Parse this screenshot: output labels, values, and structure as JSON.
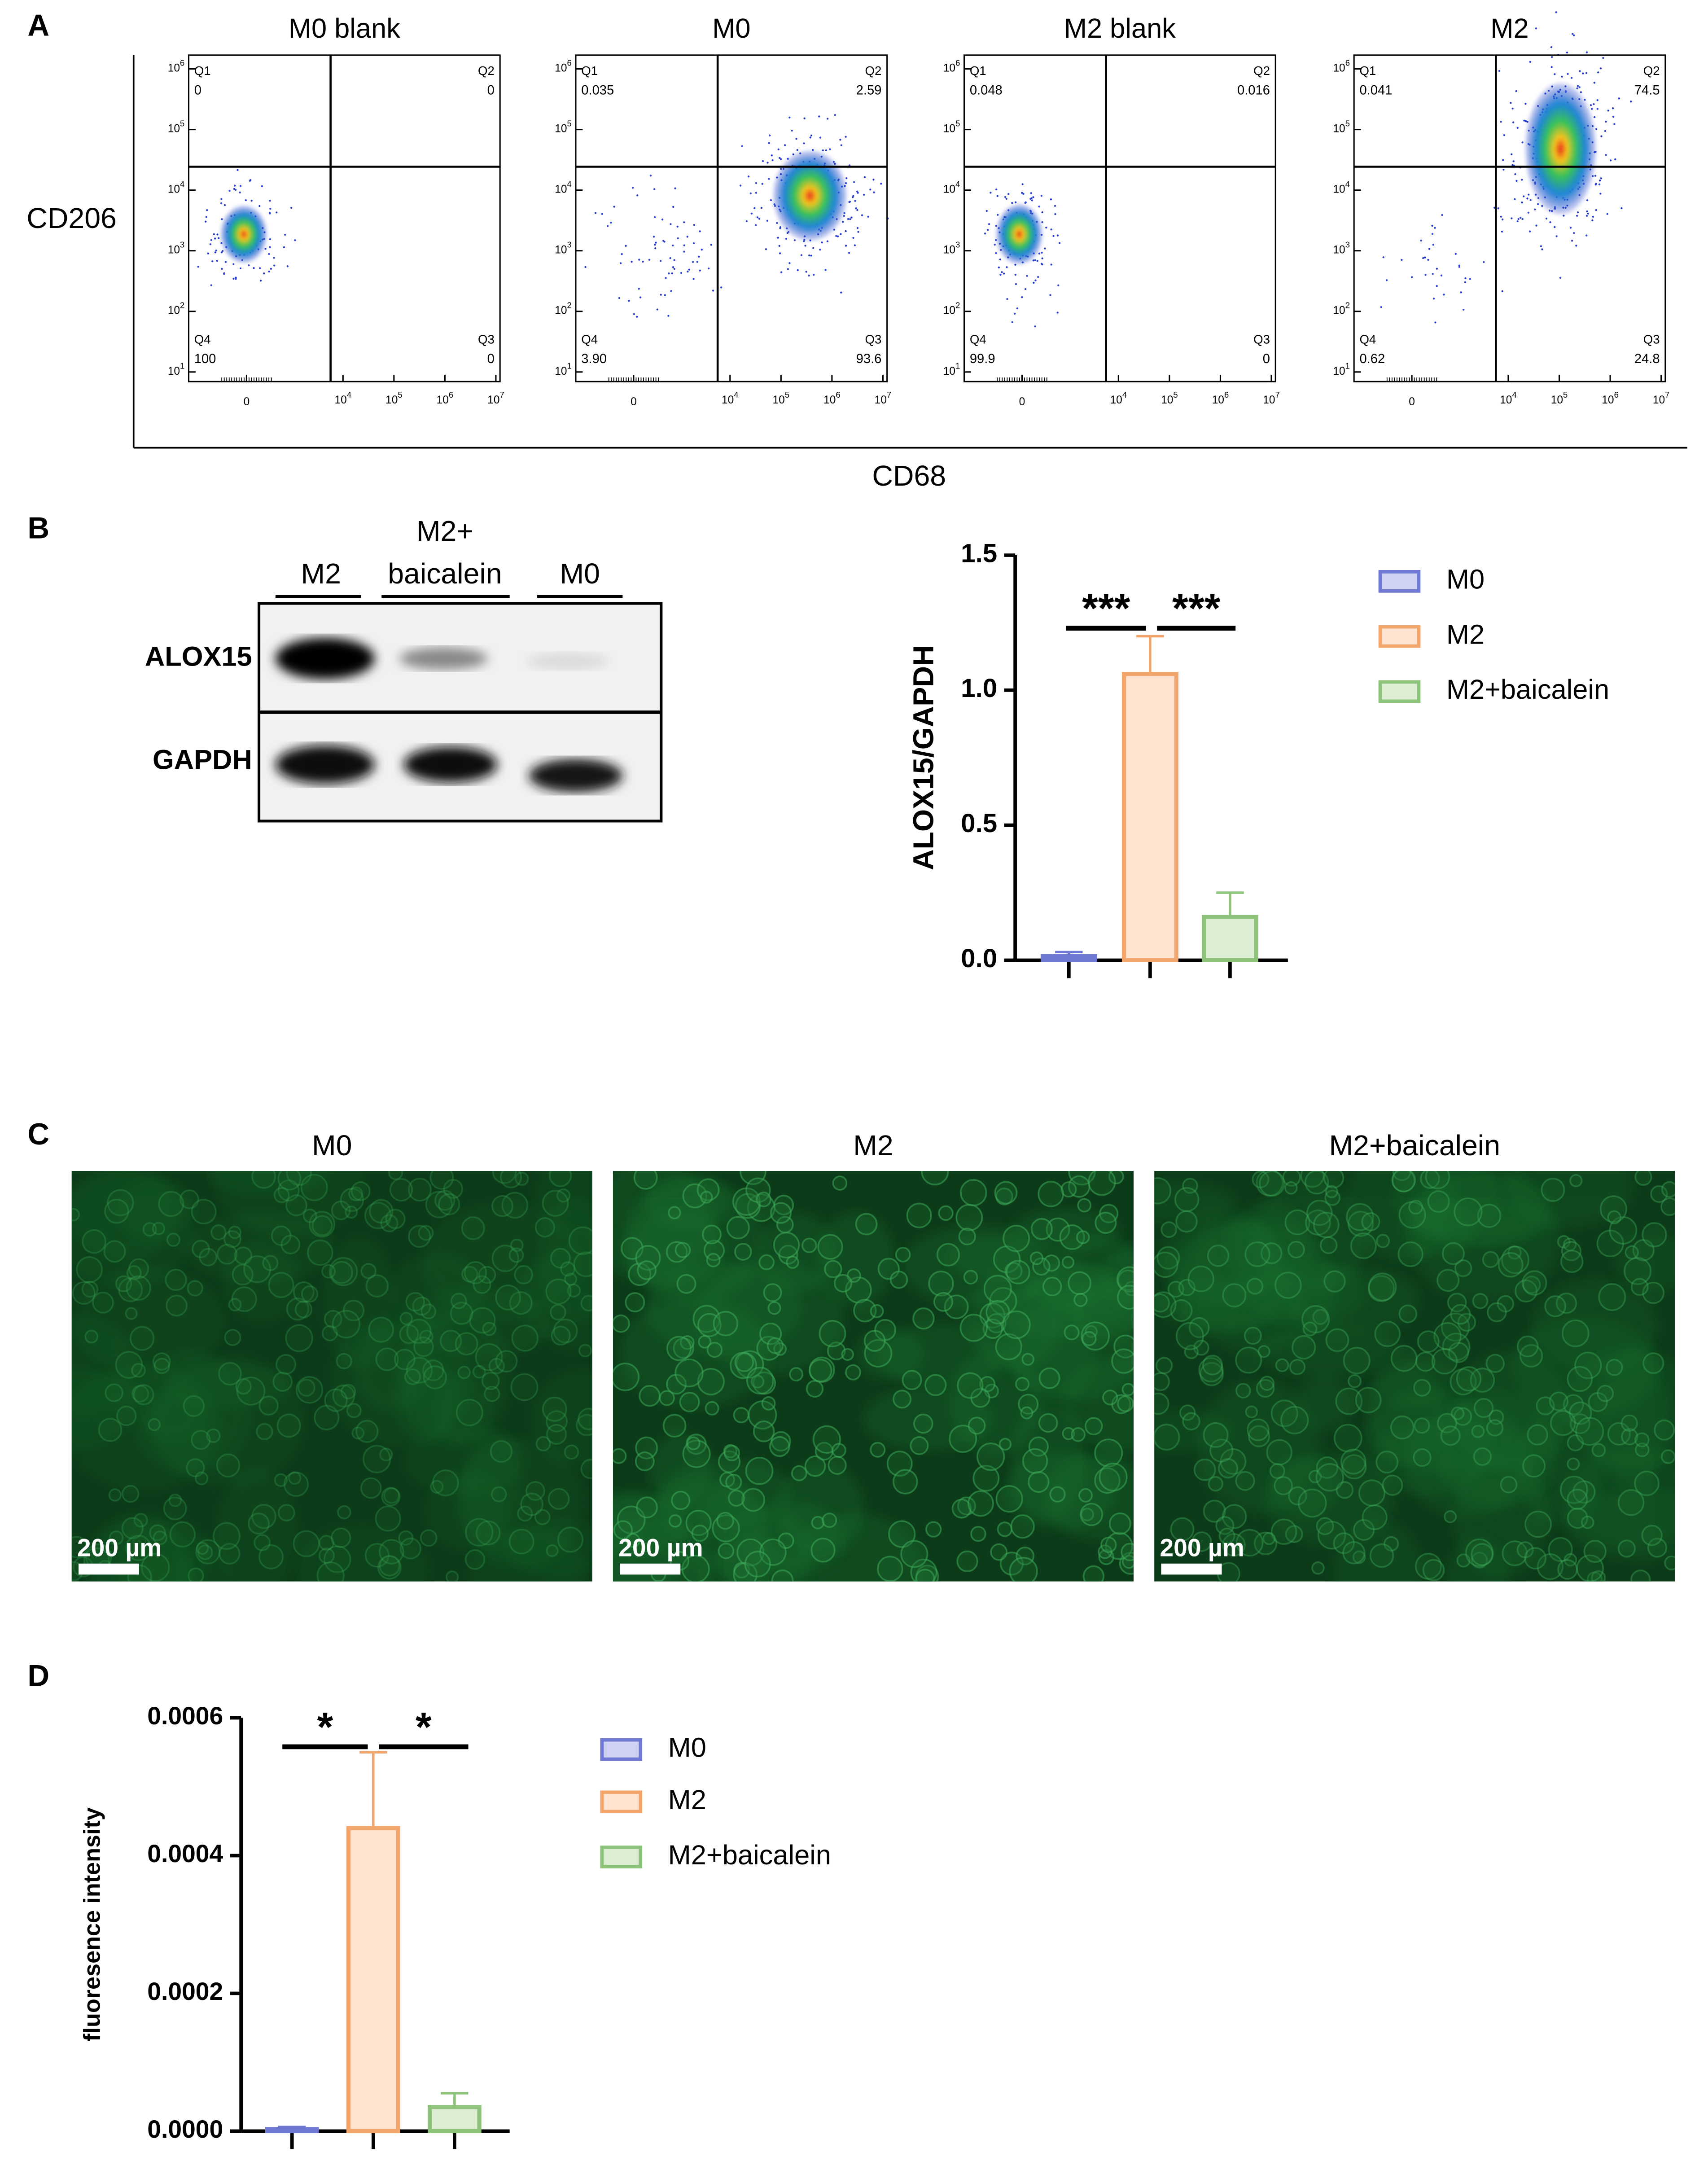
{
  "panel_labels": [
    "A",
    "B",
    "C",
    "D"
  ],
  "flow_cytometry": {
    "y_label": "CD206",
    "x_label": "CD68",
    "tick_base": "10",
    "x_tick_zero": 0,
    "x_tick_exponents": [
      4,
      5,
      6,
      7
    ],
    "y_tick_exponents": [
      1,
      2,
      3,
      4,
      5,
      6
    ],
    "plots": [
      {
        "title": "M0 blank",
        "quadrants": [
          {
            "name": "Q1",
            "value": "0"
          },
          {
            "name": "Q2",
            "value": "0"
          },
          {
            "name": "Q3",
            "value": "0"
          },
          {
            "name": "Q4",
            "value": "100"
          }
        ]
      },
      {
        "title": "M0",
        "quadrants": [
          {
            "name": "Q1",
            "value": "0.035"
          },
          {
            "name": "Q2",
            "value": "2.59"
          },
          {
            "name": "Q3",
            "value": "93.6"
          },
          {
            "name": "Q4",
            "value": "3.90"
          }
        ]
      },
      {
        "title": "M2 blank",
        "quadrants": [
          {
            "name": "Q1",
            "value": "0.048"
          },
          {
            "name": "Q2",
            "value": "0.016"
          },
          {
            "name": "Q3",
            "value": "0"
          },
          {
            "name": "Q4",
            "value": "99.9"
          }
        ]
      },
      {
        "title": "M2",
        "quadrants": [
          {
            "name": "Q1",
            "value": "0.041"
          },
          {
            "name": "Q2",
            "value": "74.5"
          },
          {
            "name": "Q3",
            "value": "24.8"
          },
          {
            "name": "Q4",
            "value": "0.62"
          }
        ]
      }
    ]
  },
  "western_blot": {
    "lanes": [
      {
        "label": [
          "M2"
        ]
      },
      {
        "label": [
          "M2+",
          "baicalein"
        ]
      },
      {
        "label": [
          "M0"
        ]
      }
    ],
    "rows": [
      "ALOX15",
      "GAPDH"
    ]
  },
  "fluorescence": {
    "images": [
      {
        "title": "M0",
        "scale_bar": "200 µm"
      },
      {
        "title": "M2",
        "scale_bar": "200 µm"
      },
      {
        "title": "M2+baicalein",
        "scale_bar": "200 µm"
      }
    ]
  },
  "chart_data": [
    {
      "type": "bar",
      "ylabel": "ALOX15/GAPDH",
      "ylim": [
        0,
        1.5
      ],
      "yticks": [
        {
          "value": 0,
          "label": "0.0"
        },
        {
          "value": 0.5,
          "label": "0.5"
        },
        {
          "value": 1,
          "label": "1.0"
        },
        {
          "value": 1.5,
          "label": "1.5"
        }
      ],
      "legend": "right",
      "series": [
        {
          "name": "M0",
          "color": "#6f78d2",
          "fill_color": "#cfd2f3",
          "values": [
            0.015
          ],
          "errors": [
            0.015
          ]
        },
        {
          "name": "M2",
          "color": "#f3a66c",
          "fill_color": "#fde3d0",
          "values": [
            1.06
          ],
          "errors": [
            0.14
          ]
        },
        {
          "name": "M2+baicalein",
          "color": "#8cc27a",
          "fill_color": "#dcedd4",
          "values": [
            0.16
          ],
          "errors": [
            0.09
          ]
        }
      ],
      "annotations": [
        "***",
        "***"
      ]
    },
    {
      "type": "bar",
      "ylabel": "fluoresence intensity",
      "ylim": [
        0,
        0.0006
      ],
      "yticks": [
        {
          "value": 0,
          "label": "0.0000"
        },
        {
          "value": 0.0002,
          "label": "0.0002"
        },
        {
          "value": 0.0004,
          "label": "0.0004"
        },
        {
          "value": 0.0006,
          "label": "0.0006"
        }
      ],
      "legend": "right",
      "series": [
        {
          "name": "M0",
          "color": "#6f78d2",
          "fill_color": "#cfd2f3",
          "values": [
            3e-06
          ],
          "errors": [
            3e-06
          ]
        },
        {
          "name": "M2",
          "color": "#f3a66c",
          "fill_color": "#fde3d0",
          "values": [
            0.00044
          ],
          "errors": [
            0.00011
          ]
        },
        {
          "name": "M2+baicalein",
          "color": "#8cc27a",
          "fill_color": "#dcedd4",
          "values": [
            3.5e-05
          ],
          "errors": [
            2e-05
          ]
        }
      ],
      "annotations": [
        "*",
        "*"
      ]
    }
  ]
}
